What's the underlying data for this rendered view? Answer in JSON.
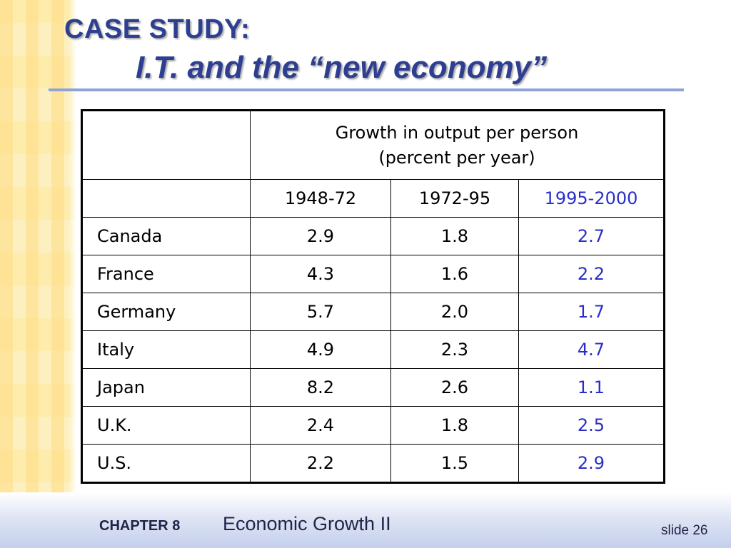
{
  "title": {
    "line1": "CASE STUDY:",
    "line2": "I.T. and the “new economy”"
  },
  "table": {
    "header_line1": "Growth in output per person",
    "header_line2": "(percent per year)",
    "periods": [
      "1948-72",
      "1972-95",
      "1995-2000"
    ],
    "rows": [
      {
        "country": "Canada",
        "values": [
          "2.9",
          "1.8",
          "2.7"
        ]
      },
      {
        "country": "France",
        "values": [
          "4.3",
          "1.6",
          "2.2"
        ]
      },
      {
        "country": "Germany",
        "values": [
          "5.7",
          "2.0",
          "1.7"
        ]
      },
      {
        "country": "Italy",
        "values": [
          "4.9",
          "2.3",
          "4.7"
        ]
      },
      {
        "country": "Japan",
        "values": [
          "8.2",
          "2.6",
          "1.1"
        ]
      },
      {
        "country": "U.K.",
        "values": [
          "2.4",
          "1.8",
          "2.5"
        ]
      },
      {
        "country": "U.S.",
        "values": [
          "2.2",
          "1.5",
          "2.9"
        ]
      }
    ]
  },
  "footer": {
    "chapter": "CHAPTER 8",
    "topic": "Economic Growth II",
    "slide": "slide 26"
  },
  "colors": {
    "title": "#2e3f92",
    "highlight": "#2a2ec8",
    "rule": "#8ea2d8"
  }
}
